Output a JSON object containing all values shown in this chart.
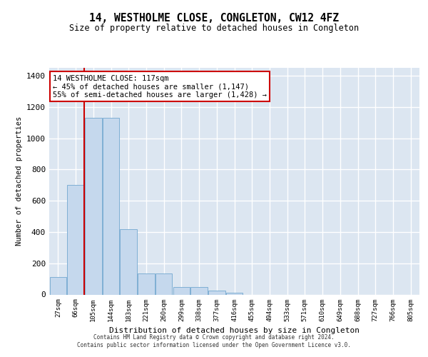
{
  "title": "14, WESTHOLME CLOSE, CONGLETON, CW12 4FZ",
  "subtitle": "Size of property relative to detached houses in Congleton",
  "xlabel": "Distribution of detached houses by size in Congleton",
  "ylabel": "Number of detached properties",
  "bar_color": "#c5d8ed",
  "bar_edgecolor": "#7fafd4",
  "bg_color": "#dce6f1",
  "grid_color": "#ffffff",
  "categories": [
    "27sqm",
    "66sqm",
    "105sqm",
    "144sqm",
    "183sqm",
    "221sqm",
    "260sqm",
    "299sqm",
    "338sqm",
    "377sqm",
    "416sqm",
    "455sqm",
    "494sqm",
    "533sqm",
    "571sqm",
    "610sqm",
    "649sqm",
    "688sqm",
    "727sqm",
    "766sqm",
    "805sqm"
  ],
  "values": [
    110,
    700,
    1130,
    1130,
    420,
    135,
    135,
    50,
    50,
    25,
    10,
    0,
    0,
    0,
    0,
    0,
    0,
    0,
    0,
    0,
    0
  ],
  "property_line_x": 1.5,
  "annotation_text": "14 WESTHOLME CLOSE: 117sqm\n← 45% of detached houses are smaller (1,147)\n55% of semi-detached houses are larger (1,428) →",
  "annotation_box_color": "#ffffff",
  "annotation_box_edgecolor": "#cc0000",
  "vline_color": "#cc0000",
  "ylim": [
    0,
    1450
  ],
  "yticks": [
    0,
    200,
    400,
    600,
    800,
    1000,
    1200,
    1400
  ],
  "footer_line1": "Contains HM Land Registry data © Crown copyright and database right 2024.",
  "footer_line2": "Contains public sector information licensed under the Open Government Licence v3.0."
}
